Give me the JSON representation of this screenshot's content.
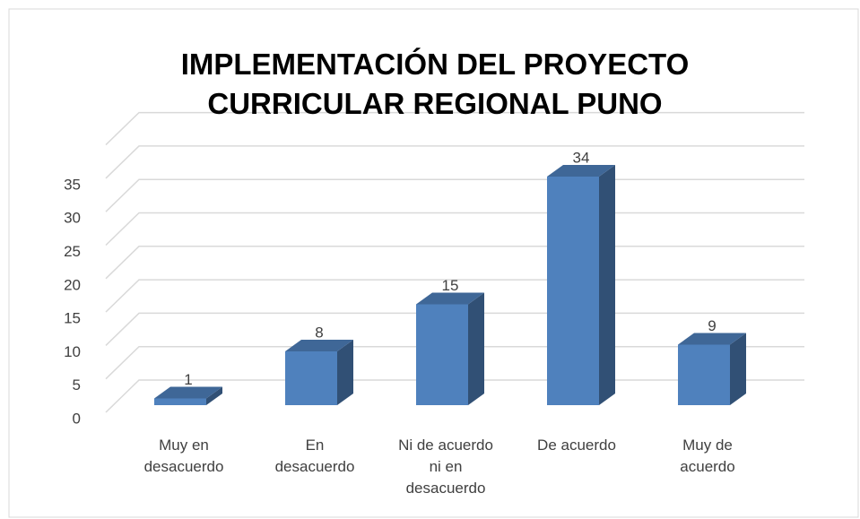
{
  "chart_data": {
    "type": "bar3d",
    "title": "IMPLEMENTACIÓN DEL PROYECTO CURRICULAR REGIONAL PUNO",
    "categories": [
      "Muy en desacuerdo",
      "En desacuerdo",
      "Ni de acuerdo ni en desacuerdo",
      "De acuerdo",
      "Muy de acuerdo"
    ],
    "values": [
      1,
      8,
      15,
      34,
      9
    ],
    "color": "#4f81bd",
    "ylim": [
      0,
      40
    ],
    "yticks": [
      0,
      5,
      10,
      15,
      20,
      25,
      30,
      35
    ],
    "grid": true
  }
}
